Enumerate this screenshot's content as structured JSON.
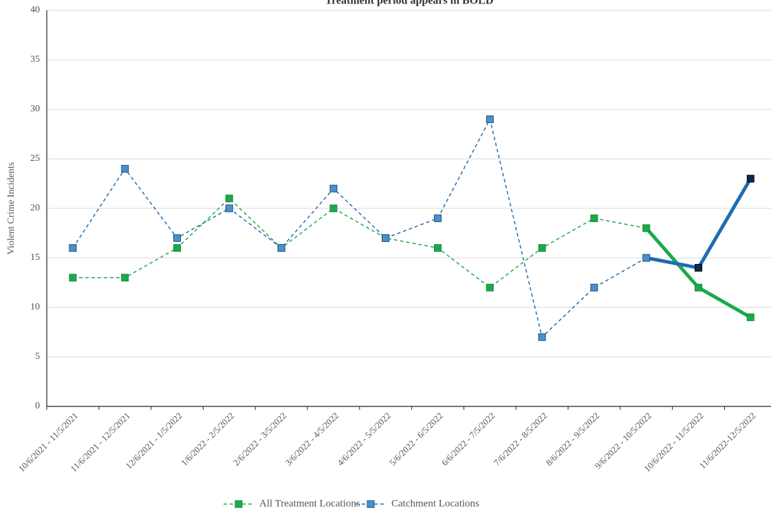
{
  "chart_data": {
    "type": "line",
    "title": "Treatment period appears in BOLD",
    "y_label": "Violent Crime Incidents",
    "categories": [
      "10/6/2021 - 11/5/2021",
      "11/6/2021 - 12/5/2021",
      "12/6/2021 - 1/5/2022",
      "1/6/2022 - 2/5/2022",
      "2/6/2022 - 3/5/2022",
      "3/6/2022 - 4/5/2022",
      "4/6/2022 - 5/5/2022",
      "5/6/2022 - 6/5/2022",
      "6/6/2022 - 7/5/2022",
      "7/6/2022 - 8/5/2022",
      "8/6/2022 - 9/5/2022",
      "9/6/2022 - 10/5/2022",
      "10/6/2022 - 11/5/2022",
      "11/6/2022-12/5/2022"
    ],
    "series": [
      {
        "name": "All Treatment Locations",
        "color": "#1aaa4b",
        "values": [
          13,
          13,
          16,
          21,
          16,
          20,
          17,
          16,
          12,
          16,
          19,
          18,
          12,
          9
        ]
      },
      {
        "name": "Catchment Locations",
        "color": "#1f6cb0",
        "values": [
          16,
          24,
          17,
          20,
          16,
          22,
          17,
          19,
          29,
          7,
          12,
          15,
          14,
          23
        ]
      }
    ],
    "bold_start": 11,
    "ylim": [
      0,
      40
    ],
    "yticks": [
      0,
      5,
      10,
      15,
      20,
      25,
      30,
      35,
      40
    ],
    "grid": true,
    "legend": "bottom"
  }
}
